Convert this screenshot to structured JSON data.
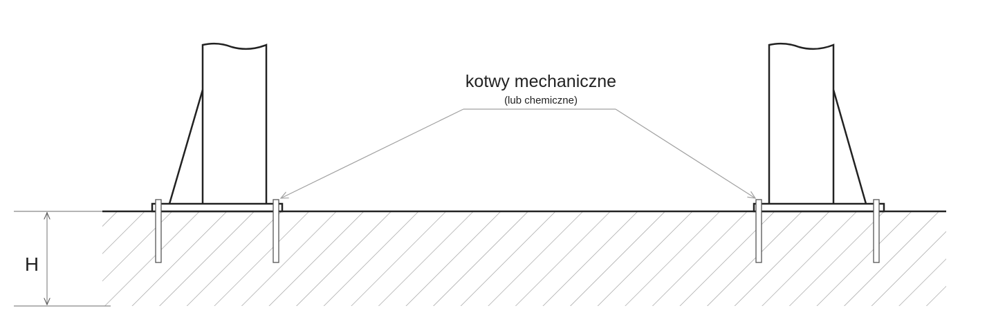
{
  "label": {
    "main": "kotwy mechaniczne",
    "sub": "(lub chemiczne)"
  },
  "dimension": {
    "symbol": "H"
  },
  "colors": {
    "line": "#222222",
    "hatch": "#9a9a9a",
    "leader": "#a0a0a0"
  }
}
